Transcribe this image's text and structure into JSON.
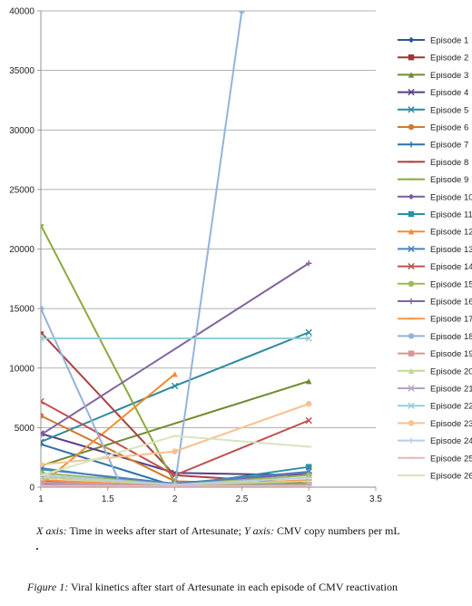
{
  "chart_data": {
    "type": "line",
    "title": "",
    "xlim": [
      1,
      3.5
    ],
    "ylim": [
      0,
      40000
    ],
    "x_ticks": [
      "1",
      "1.5",
      "2",
      "2.5",
      "3",
      "3.5"
    ],
    "y_ticks": [
      "0",
      "5000",
      "10000",
      "15000",
      "20000",
      "25000",
      "30000",
      "35000",
      "40000"
    ],
    "grid": "horizontal",
    "legend_position": "right",
    "series": [
      {
        "name": "Episode 1",
        "color": "#2E5597",
        "marker": "diamond",
        "points": [
          [
            1,
            500
          ],
          [
            2,
            100
          ]
        ]
      },
      {
        "name": "Episode 2",
        "color": "#9E3634",
        "marker": "square",
        "points": [
          [
            1,
            800
          ],
          [
            2,
            300
          ],
          [
            3,
            200
          ]
        ]
      },
      {
        "name": "Episode 3",
        "color": "#6E8B2E",
        "marker": "triangle",
        "points": [
          [
            1,
            1800
          ],
          [
            3,
            8900
          ]
        ]
      },
      {
        "name": "Episode 4",
        "color": "#5B3C84",
        "marker": "x",
        "points": [
          [
            1,
            4500
          ],
          [
            2,
            1200
          ],
          [
            3,
            1000
          ]
        ]
      },
      {
        "name": "Episode 5",
        "color": "#2F8A9E",
        "marker": "x",
        "points": [
          [
            1,
            3800
          ],
          [
            2,
            8500
          ],
          [
            3,
            13000
          ]
        ]
      },
      {
        "name": "Episode 6",
        "color": "#D07A2E",
        "marker": "circle",
        "points": [
          [
            1,
            6000
          ],
          [
            2,
            500
          ],
          [
            3,
            200
          ]
        ]
      },
      {
        "name": "Episode 7",
        "color": "#2E6FA8",
        "marker": "plus",
        "points": [
          [
            1,
            3600
          ],
          [
            2,
            100
          ],
          [
            3,
            100
          ]
        ]
      },
      {
        "name": "Episode 8",
        "color": "#A8413E",
        "marker": "line",
        "points": [
          [
            1,
            13000
          ],
          [
            2,
            1000
          ],
          [
            3,
            300
          ]
        ]
      },
      {
        "name": "Episode 9",
        "color": "#8AAA3E",
        "marker": "line",
        "points": [
          [
            1,
            22000
          ],
          [
            2,
            300
          ],
          [
            3,
            300
          ]
        ]
      },
      {
        "name": "Episode 10",
        "color": "#7B5AA3",
        "marker": "diamond",
        "points": [
          [
            1,
            300
          ],
          [
            2,
            200
          ],
          [
            3,
            1200
          ]
        ]
      },
      {
        "name": "Episode 11",
        "color": "#2E8FA8",
        "marker": "square",
        "points": [
          [
            1,
            1600
          ],
          [
            2,
            100
          ],
          [
            3,
            1700
          ]
        ]
      },
      {
        "name": "Episode 12",
        "color": "#F08D34",
        "marker": "triangle",
        "points": [
          [
            1,
            200
          ],
          [
            2,
            9500
          ]
        ]
      },
      {
        "name": "Episode 13",
        "color": "#4F81BD",
        "marker": "x",
        "points": [
          [
            1,
            1500
          ],
          [
            2,
            300
          ],
          [
            3,
            1300
          ]
        ]
      },
      {
        "name": "Episode 14",
        "color": "#C0504D",
        "marker": "x",
        "points": [
          [
            1,
            7200
          ],
          [
            2,
            1000
          ],
          [
            3,
            5600
          ]
        ]
      },
      {
        "name": "Episode 15",
        "color": "#9BBB59",
        "marker": "circle",
        "points": [
          [
            1,
            1200
          ],
          [
            2,
            200
          ],
          [
            3,
            1000
          ]
        ]
      },
      {
        "name": "Episode 16",
        "color": "#8064A2",
        "marker": "plus",
        "points": [
          [
            1,
            4400
          ],
          [
            3,
            18800
          ]
        ]
      },
      {
        "name": "Episode 17",
        "color": "#F79646",
        "marker": "line",
        "points": [
          [
            1,
            600
          ],
          [
            2,
            100
          ],
          [
            3,
            600
          ]
        ]
      },
      {
        "name": "Episode 18",
        "color": "#95B3D7",
        "marker": "circle",
        "points": [
          [
            1,
            15000
          ],
          [
            1.6,
            100
          ],
          [
            2,
            100
          ],
          [
            2.5,
            40000
          ]
        ]
      },
      {
        "name": "Episode 19",
        "color": "#D99694",
        "marker": "square",
        "points": [
          [
            1,
            400
          ],
          [
            2,
            100
          ],
          [
            3,
            100
          ]
        ]
      },
      {
        "name": "Episode 20",
        "color": "#C3D69B",
        "marker": "triangle",
        "points": [
          [
            1,
            800
          ],
          [
            2,
            200
          ],
          [
            3,
            500
          ]
        ]
      },
      {
        "name": "Episode 21",
        "color": "#B3A2C7",
        "marker": "x",
        "points": [
          [
            1,
            200
          ],
          [
            2,
            100
          ],
          [
            3,
            200
          ]
        ]
      },
      {
        "name": "Episode 22",
        "color": "#93CDDD",
        "marker": "x",
        "points": [
          [
            1,
            12500
          ],
          [
            3,
            12500
          ]
        ]
      },
      {
        "name": "Episode 23",
        "color": "#FAC090",
        "marker": "circle",
        "points": [
          [
            1,
            1900
          ],
          [
            2,
            3000
          ],
          [
            3,
            7000
          ]
        ]
      },
      {
        "name": "Episode 24",
        "color": "#B9CDE5",
        "marker": "plus",
        "points": [
          [
            1,
            1000
          ],
          [
            2,
            200
          ],
          [
            3,
            800
          ]
        ]
      },
      {
        "name": "Episode 25",
        "color": "#E6B9B8",
        "marker": "line",
        "points": [
          [
            1,
            100
          ],
          [
            2,
            100
          ],
          [
            3,
            100
          ]
        ]
      },
      {
        "name": "Episode 26",
        "color": "#D7E4BD",
        "marker": "line",
        "points": [
          [
            1,
            1000
          ],
          [
            2,
            4300
          ],
          [
            3,
            3400
          ]
        ]
      }
    ]
  },
  "captions": {
    "axis_x_label": "X axis:",
    "axis_x_text": " Time in weeks after start of Artesunate;  ",
    "axis_y_label": "Y axis:",
    "axis_y_text": "  CMV copy numbers  per mL",
    "figure_label": "Figure 1:",
    "figure_text": " Viral kinetics after start of Artesunate in each episode of CMV reactivation"
  }
}
